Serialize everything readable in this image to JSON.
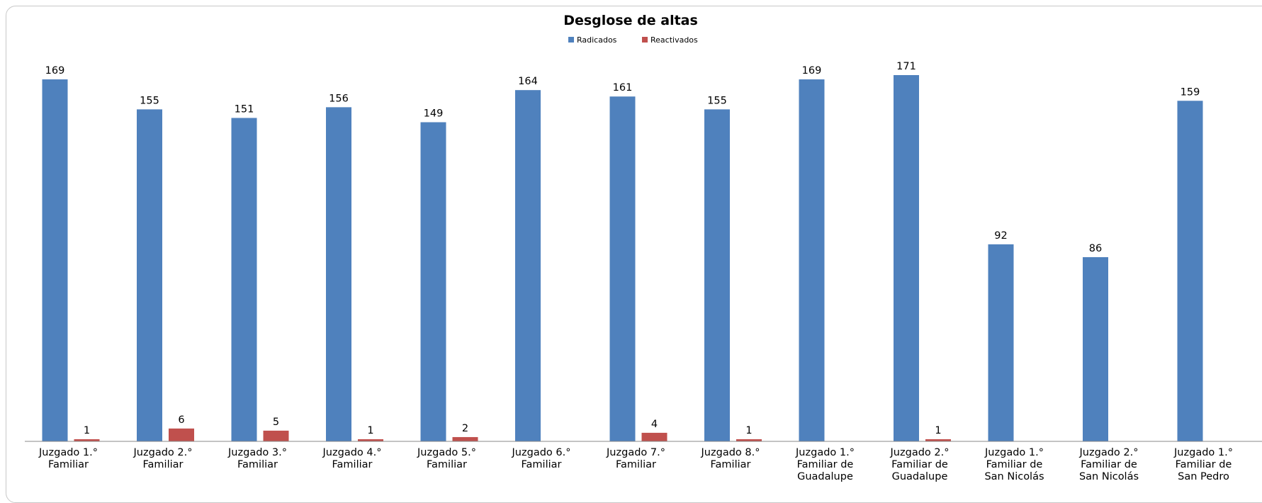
{
  "chart_data": {
    "type": "bar",
    "title": "Desglose de altas",
    "legend_position": "top",
    "grid": false,
    "ylim": [
      0,
      171
    ],
    "categories": [
      [
        "Juzgado 1.°",
        "Familiar"
      ],
      [
        "Juzgado 2.°",
        "Familiar"
      ],
      [
        "Juzgado 3.°",
        "Familiar"
      ],
      [
        "Juzgado 4.°",
        "Familiar"
      ],
      [
        "Juzgado 5.°",
        "Familiar"
      ],
      [
        "Juzgado 6.°",
        "Familiar"
      ],
      [
        "Juzgado 7.°",
        "Familiar"
      ],
      [
        "Juzgado 8.°",
        "Familiar"
      ],
      [
        "Juzgado 1.°",
        "Familiar de",
        "Guadalupe"
      ],
      [
        "Juzgado 2.°",
        "Familiar de",
        "Guadalupe"
      ],
      [
        "Juzgado 1.°",
        "Familiar de",
        "San Nicolás"
      ],
      [
        "Juzgado 2.°",
        "Familiar de",
        "San Nicolás"
      ],
      [
        "Juzgado 1.°",
        "Familiar de",
        "San Pedro"
      ]
    ],
    "series": [
      {
        "name": "Radicados",
        "color": "#4f81bd",
        "values": [
          169,
          155,
          151,
          156,
          149,
          164,
          161,
          155,
          169,
          171,
          92,
          86,
          159
        ]
      },
      {
        "name": "Reactivados",
        "color": "#c0504d",
        "values": [
          1,
          6,
          5,
          1,
          2,
          null,
          4,
          1,
          null,
          1,
          null,
          null,
          null
        ]
      }
    ]
  }
}
